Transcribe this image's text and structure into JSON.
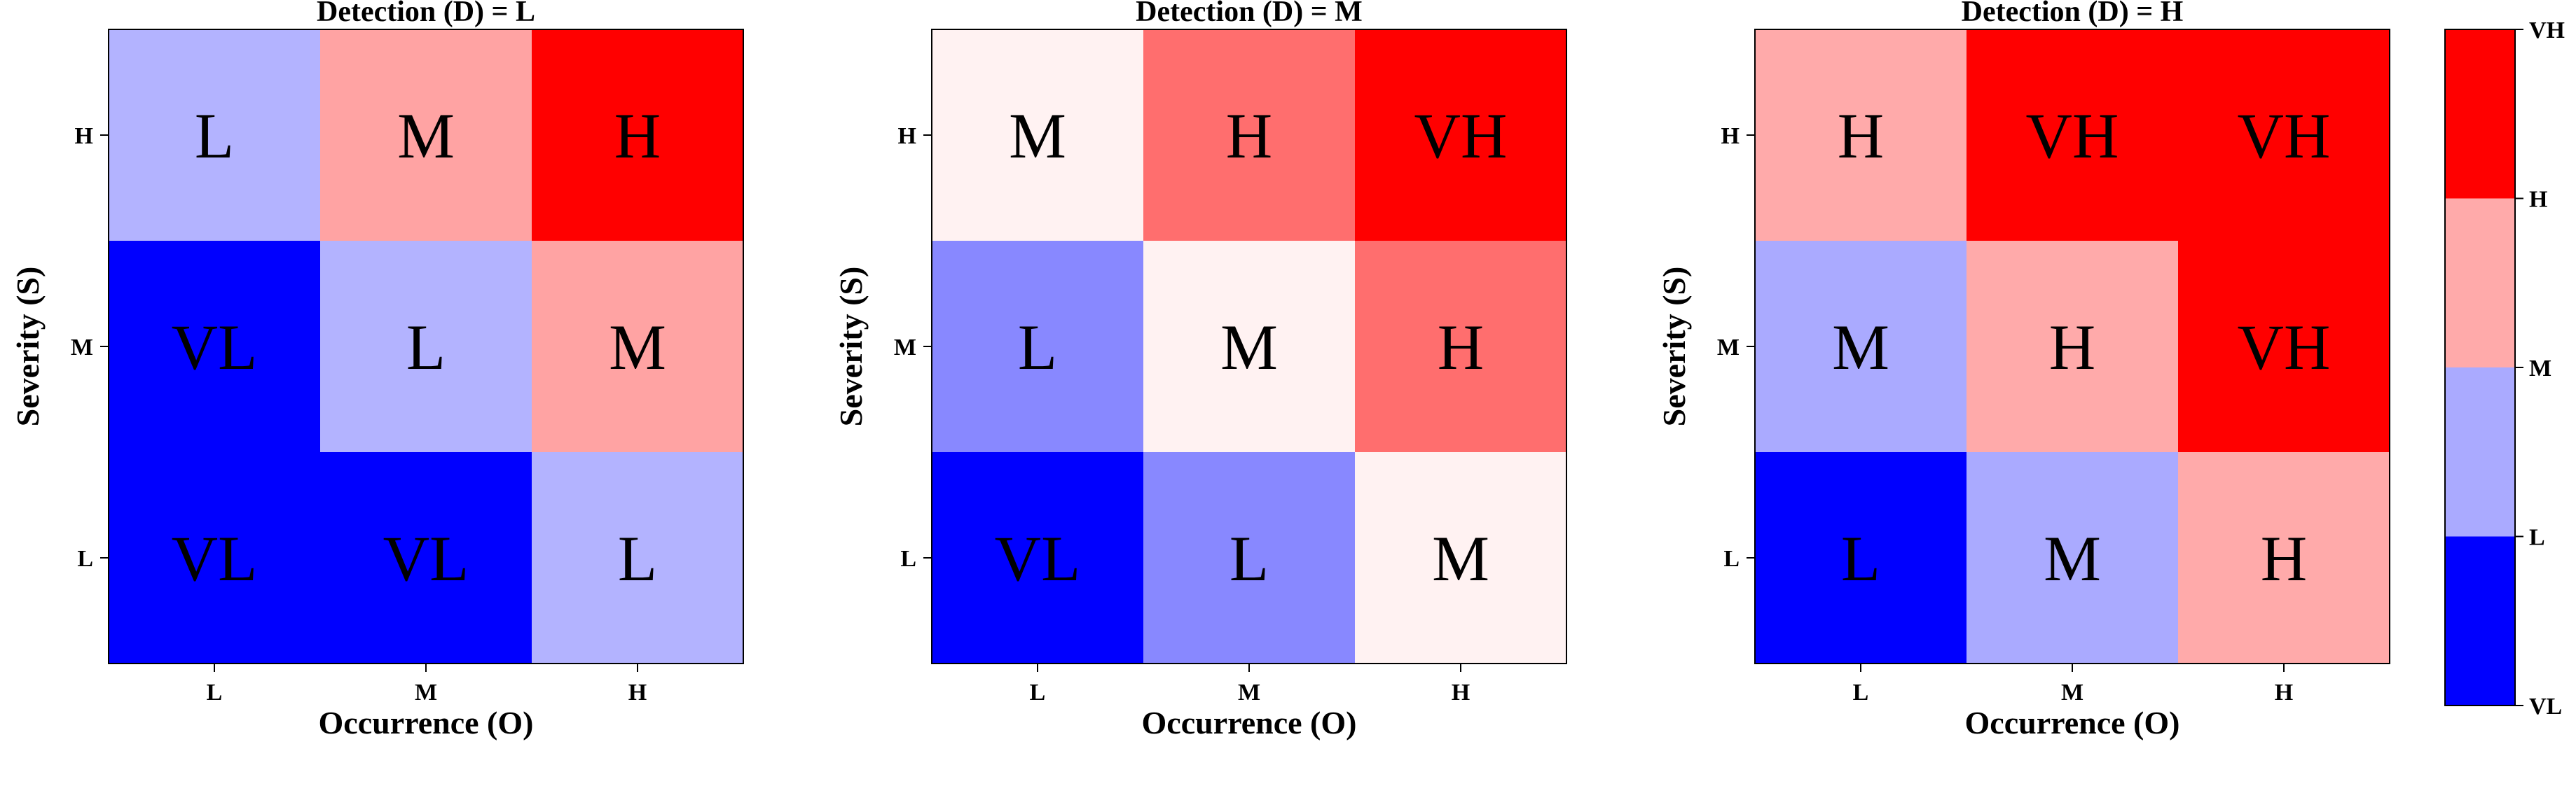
{
  "chart_data": [
    {
      "type": "heatmap",
      "title": "Detection (D) = L",
      "xlabel": "Occurrence (O)",
      "ylabel": "Severity (S)",
      "x_categories": [
        "L",
        "M",
        "H"
      ],
      "y_categories": [
        "H",
        "M",
        "L"
      ],
      "cells": [
        [
          "L",
          "M",
          "H"
        ],
        [
          "VL",
          "L",
          "M"
        ],
        [
          "VL",
          "VL",
          "L"
        ]
      ]
    },
    {
      "type": "heatmap",
      "title": "Detection (D) = M",
      "xlabel": "Occurrence (O)",
      "ylabel": "Severity (S)",
      "x_categories": [
        "L",
        "M",
        "H"
      ],
      "y_categories": [
        "H",
        "M",
        "L"
      ],
      "cells": [
        [
          "M",
          "H",
          "VH"
        ],
        [
          "L",
          "M",
          "H"
        ],
        [
          "VL",
          "L",
          "M"
        ]
      ]
    },
    {
      "type": "heatmap",
      "title": "Detection (D) = H",
      "xlabel": "Occurrence (O)",
      "ylabel": "Severity (S)",
      "x_categories": [
        "L",
        "M",
        "H"
      ],
      "y_categories": [
        "H",
        "M",
        "L"
      ],
      "cells": [
        [
          "H",
          "VH",
          "VH"
        ],
        [
          "M",
          "H",
          "VH"
        ],
        [
          "L",
          "M",
          "H"
        ]
      ]
    }
  ],
  "colorbar": {
    "ticks": [
      "VL",
      "L",
      "M",
      "H",
      "VH"
    ]
  },
  "colors": {
    "panel1": {
      "VL": "#0000ff",
      "L": "#b3b3ff",
      "M": "#ffa3a3",
      "H": "#ff0000"
    },
    "panel2": {
      "VL": "#0000ff",
      "L": "#8888ff",
      "M": "#fff2f2",
      "H": "#ff6e6e",
      "VH": "#ff0000"
    },
    "panel3": {
      "VL": "#0000ff",
      "L": "#0000ff",
      "M": "#aaaaff",
      "H": "#ffaaaa",
      "VH": "#ff0000"
    },
    "colorbar_segments": [
      "#0000ff",
      "#aaaaff",
      "#ffaaaa",
      "#ff0000"
    ]
  }
}
